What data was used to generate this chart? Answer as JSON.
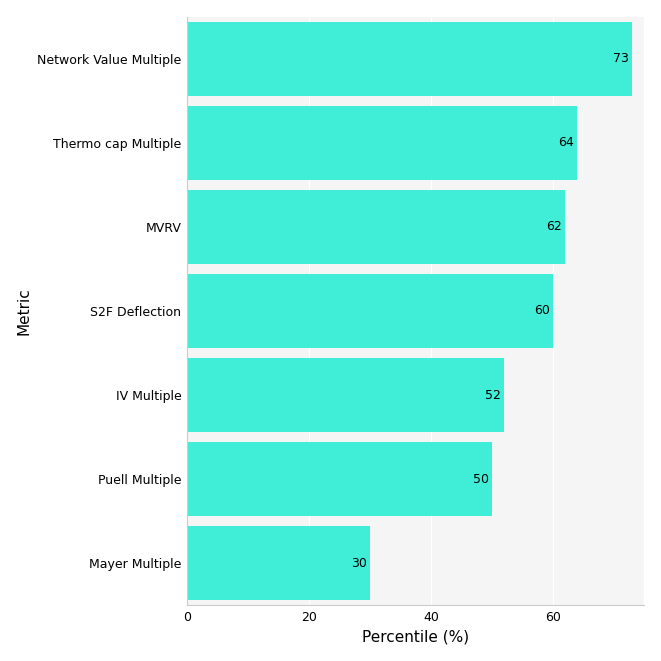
{
  "categories": [
    "Network Value Multiple",
    "Thermo cap Multiple",
    "MVRV",
    "S2F Deflection",
    "IV Multiple",
    "Puell Multiple",
    "Mayer Multiple"
  ],
  "values": [
    73,
    64,
    62,
    60,
    52,
    50,
    30
  ],
  "bar_color": "#40EED8",
  "xlabel": "Percentile (%)",
  "ylabel": "Metric",
  "xlim": [
    0,
    75
  ],
  "xticks": [
    0,
    20,
    40,
    60
  ],
  "background_color": "#ffffff",
  "panel_background": "#f5f5f5",
  "axis_label_fontsize": 11,
  "tick_fontsize": 9,
  "bar_height": 0.88,
  "value_label_fontsize": 9,
  "spine_color": "#cccccc",
  "grid_color": "#ffffff"
}
